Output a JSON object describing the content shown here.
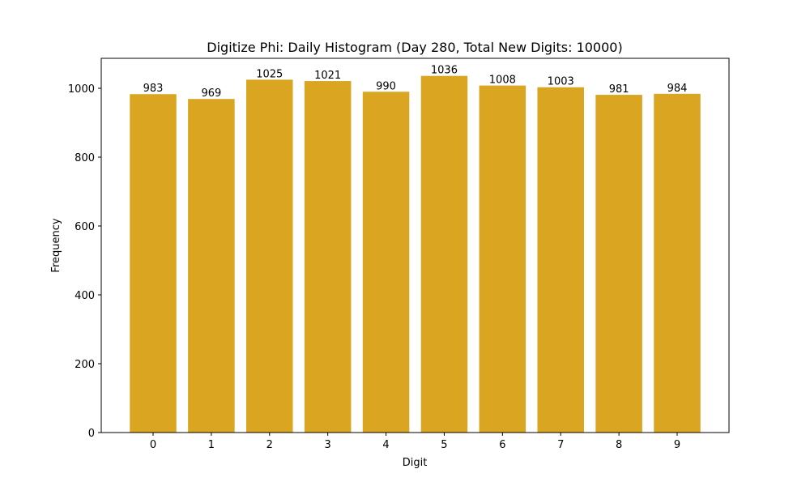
{
  "chart_data": {
    "type": "bar",
    "title": "Digitize Phi: Daily Histogram (Day 280, Total New Digits: 10000)",
    "xlabel": "Digit",
    "ylabel": "Frequency",
    "categories": [
      "0",
      "1",
      "2",
      "3",
      "4",
      "5",
      "6",
      "7",
      "8",
      "9"
    ],
    "values": [
      983,
      969,
      1025,
      1021,
      990,
      1036,
      1008,
      1003,
      981,
      984
    ],
    "bar_labels": [
      "983",
      "969",
      "1025",
      "1021",
      "990",
      "1036",
      "1008",
      "1003",
      "981",
      "984"
    ],
    "yticks": [
      0,
      200,
      400,
      600,
      800,
      1000
    ],
    "ylim": [
      0,
      1088
    ],
    "grid": false,
    "legend": null,
    "bar_color": "#DAA520"
  }
}
